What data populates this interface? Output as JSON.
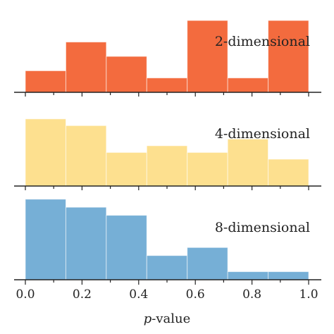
{
  "chart_data": {
    "type": "bar",
    "xlabel": "p-value",
    "xlim": [
      0.0,
      1.0
    ],
    "xticks": [
      "0.0",
      "0.2",
      "0.4",
      "0.6",
      "0.8",
      "1.0"
    ],
    "bin_edges": [
      0.0,
      0.1429,
      0.2857,
      0.4286,
      0.5714,
      0.7143,
      0.8571,
      1.0
    ],
    "panels": [
      {
        "name": "2-dimensional",
        "color": "#f36b3e",
        "values": [
          3,
          7,
          5,
          2,
          10,
          2,
          10
        ],
        "ylim": [
          0,
          10.5
        ]
      },
      {
        "name": "4-dimensional",
        "color": "#fde08f",
        "values": [
          10,
          9,
          5,
          6,
          5,
          7,
          4
        ],
        "ylim": [
          0,
          10.5
        ]
      },
      {
        "name": "8-dimensional",
        "color": "#76afd6",
        "values": [
          10,
          9,
          8,
          3,
          4,
          1,
          1
        ],
        "ylim": [
          0,
          10.5
        ]
      }
    ]
  }
}
